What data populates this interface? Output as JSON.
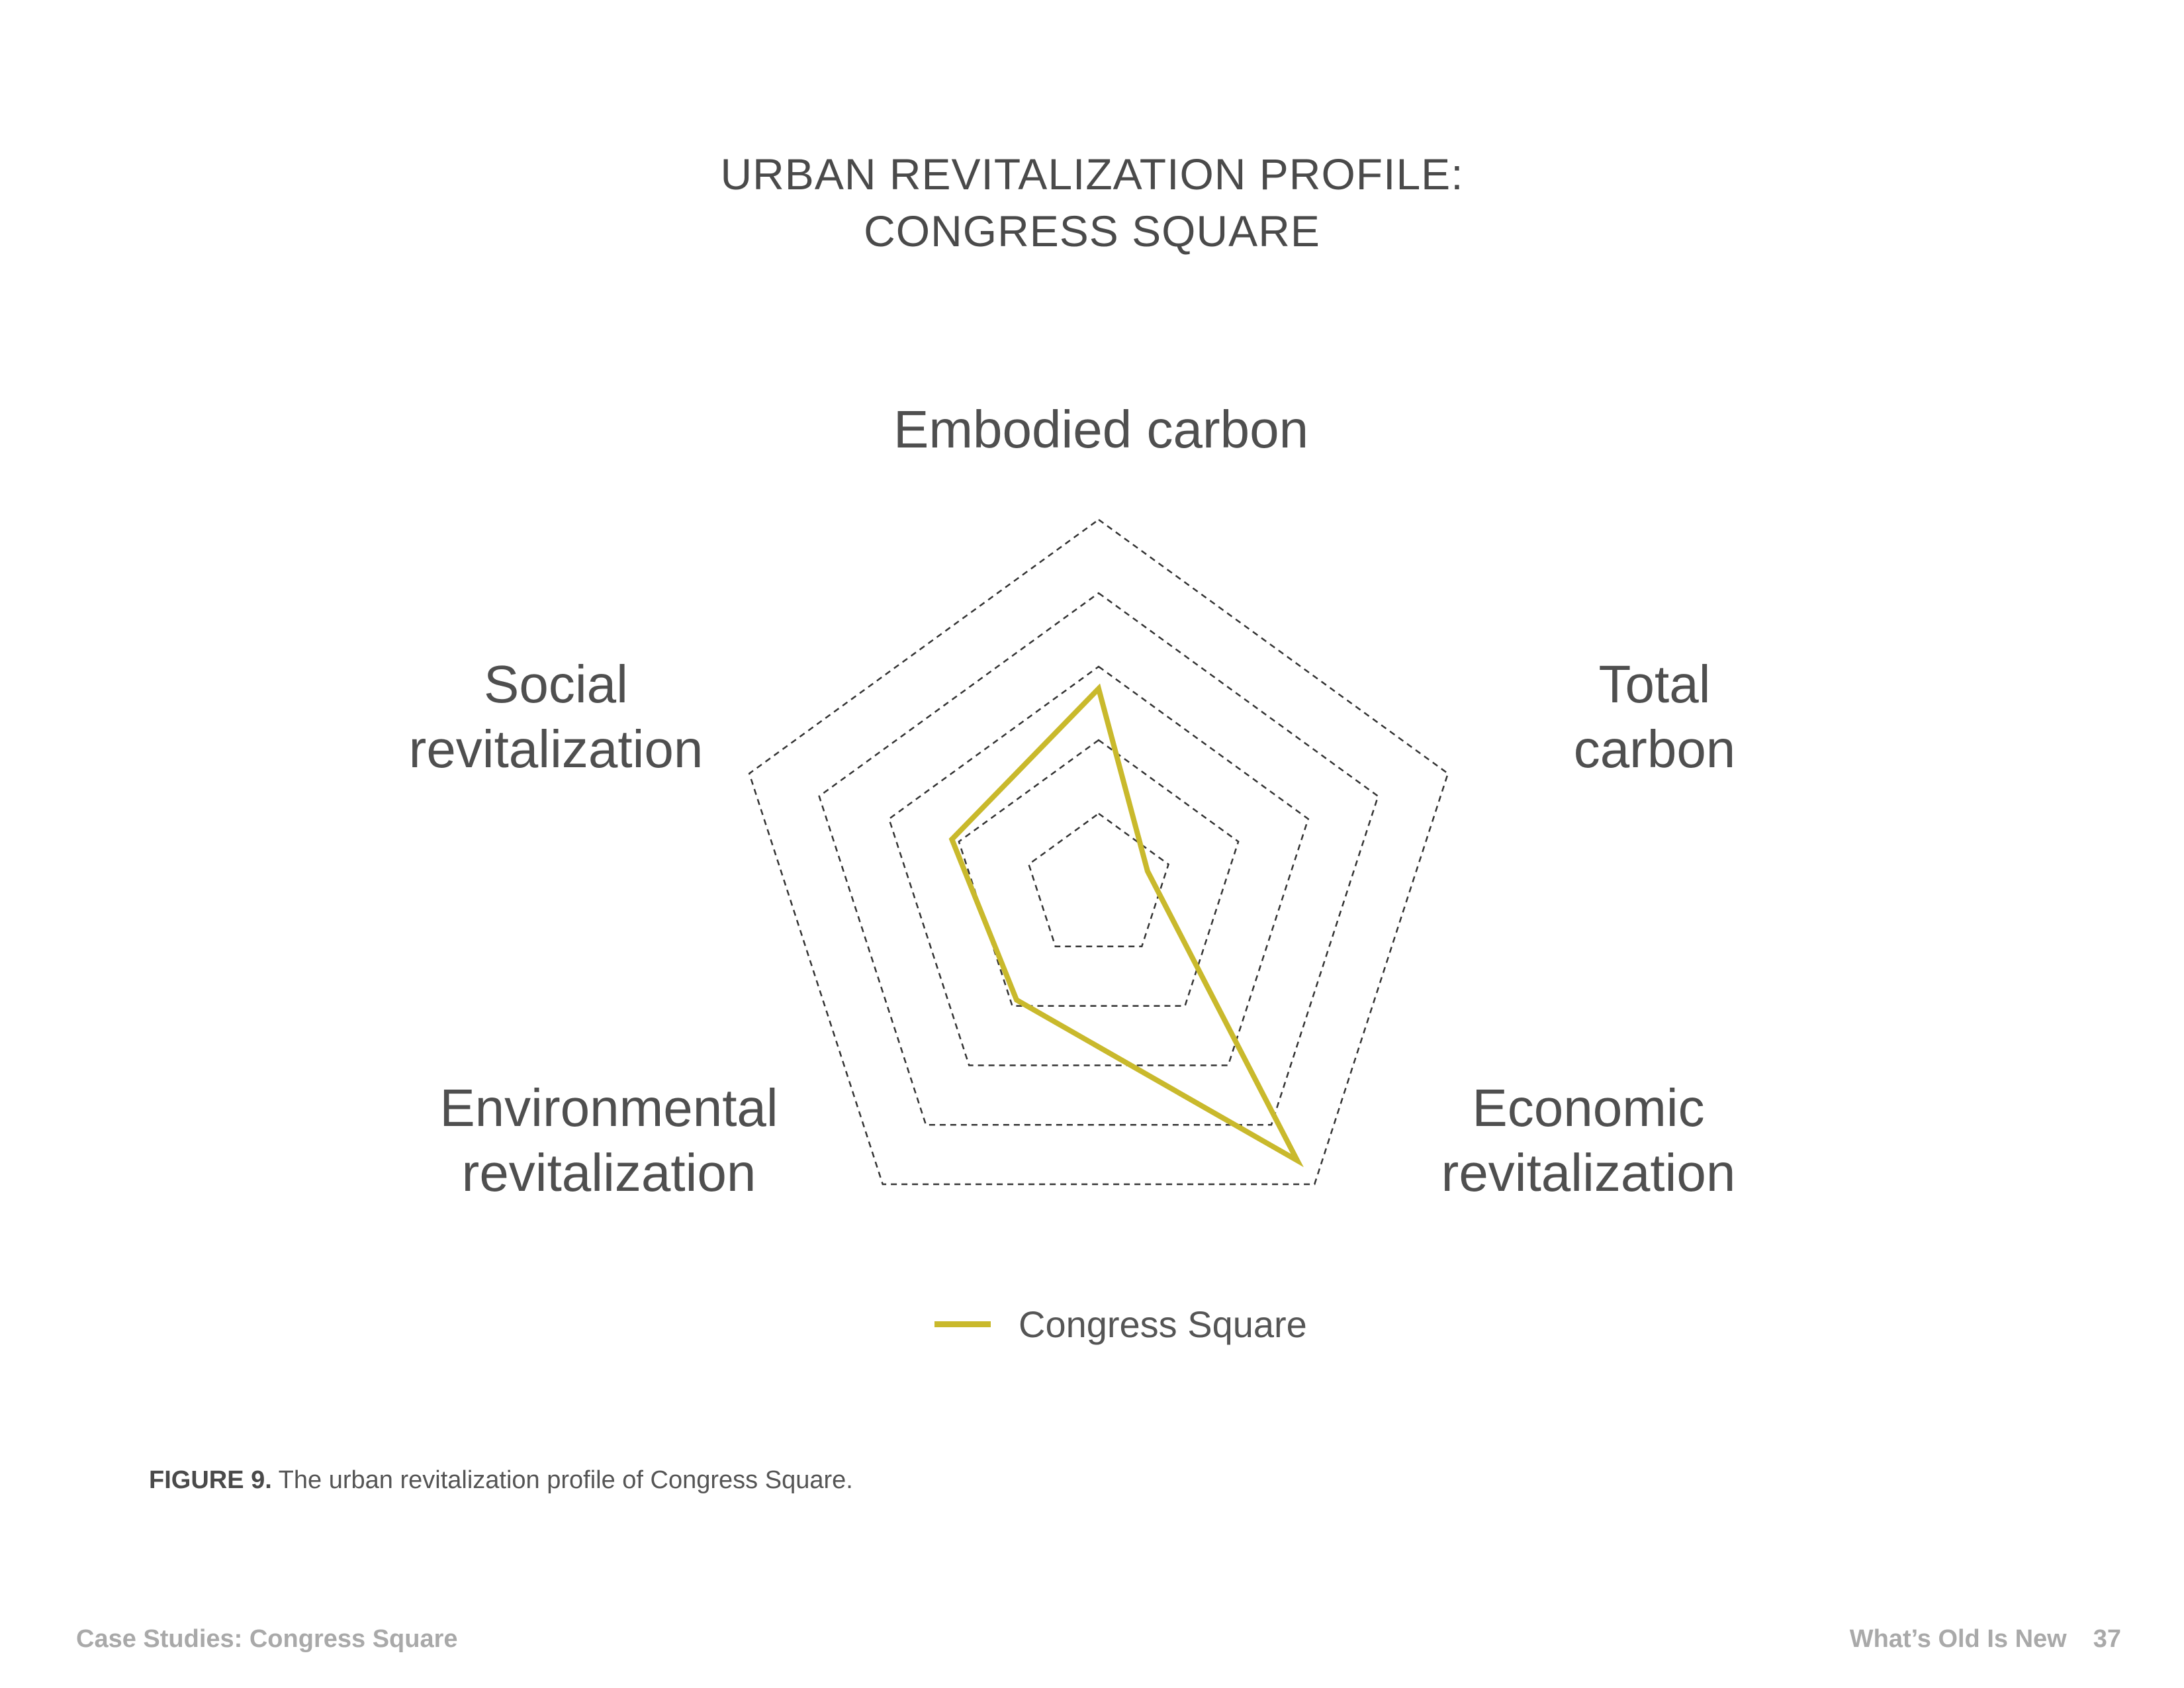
{
  "chart_data": {
    "type": "radar",
    "title": "URBAN REVITALIZATION PROFILE:\nCONGRESS SQUARE",
    "title_lines": [
      "URBAN REVITALIZATION PROFILE:",
      "CONGRESS SQUARE"
    ],
    "axes": [
      {
        "lines": [
          "Embodied carbon"
        ]
      },
      {
        "lines": [
          "Total",
          "carbon"
        ]
      },
      {
        "lines": [
          "Economic",
          "revitalization"
        ]
      },
      {
        "lines": [
          "Environmental",
          "revitalization"
        ]
      },
      {
        "lines": [
          "Social",
          "revitalization"
        ]
      }
    ],
    "categories": [
      "Embodied carbon",
      "Total carbon",
      "Economic revitalization",
      "Environmental revitalization",
      "Social revitalization"
    ],
    "rlim": [
      0,
      5
    ],
    "grid_levels": 5,
    "grid_style": "dashed",
    "series": [
      {
        "name": "Congress Square",
        "values": [
          2.7,
          0.7,
          4.6,
          1.9,
          2.1
        ],
        "color": "#c9b92c"
      }
    ],
    "legend_position": "bottom-center"
  },
  "caption": {
    "label": "FIGURE 9.",
    "text": " The urban revitalization profile of Congress Square."
  },
  "footer": {
    "left": "Case Studies: Congress Square",
    "right": "What’s Old Is New",
    "page": "37"
  },
  "colors": {
    "series": "#c9b92c",
    "grid": "#333333",
    "text": "#555555",
    "footer": "#a9a9a9"
  }
}
